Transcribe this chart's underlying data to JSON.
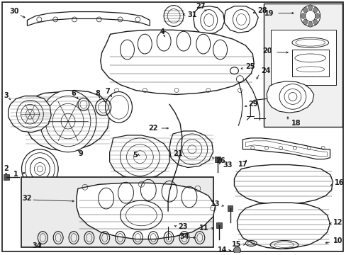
{
  "bg_color": "#ffffff",
  "line_color": "#1a1a1a",
  "box_bg": "#f0f0f0",
  "inset_bg": "#ebebeb",
  "fig_width": 4.89,
  "fig_height": 3.6,
  "dpi": 100
}
